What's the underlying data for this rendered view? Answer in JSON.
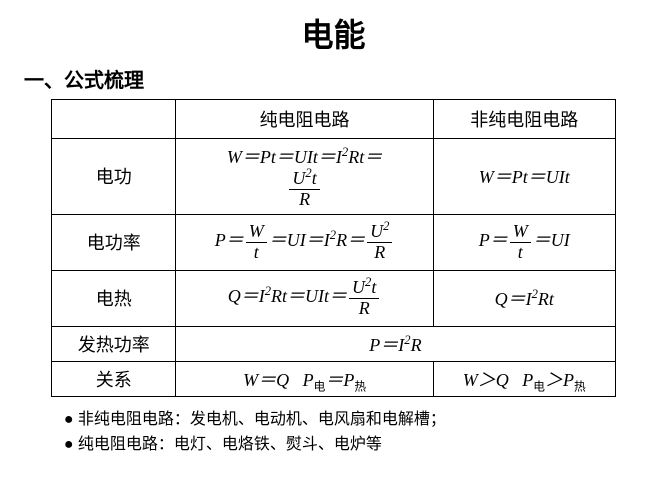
{
  "title": "电能",
  "section_heading": "一、公式梳理",
  "table": {
    "col_headers": [
      "纯电阻电路",
      "非纯电阻电路"
    ],
    "rows": [
      {
        "label": "电功"
      },
      {
        "label": "电功率"
      },
      {
        "label": "电热"
      },
      {
        "label": "发热功率"
      },
      {
        "label": "关系"
      }
    ]
  },
  "notes": {
    "line1": "非纯电阻电路：发电机、电动机、电风扇和电解槽；",
    "line2": "纯电阻电路：电灯、电烙铁、熨斗、电炉等"
  },
  "colors": {
    "background": "#ffffff",
    "text": "#000000",
    "border": "#000000"
  },
  "fonts": {
    "chinese": "SimSun",
    "formula": "Times New Roman"
  }
}
